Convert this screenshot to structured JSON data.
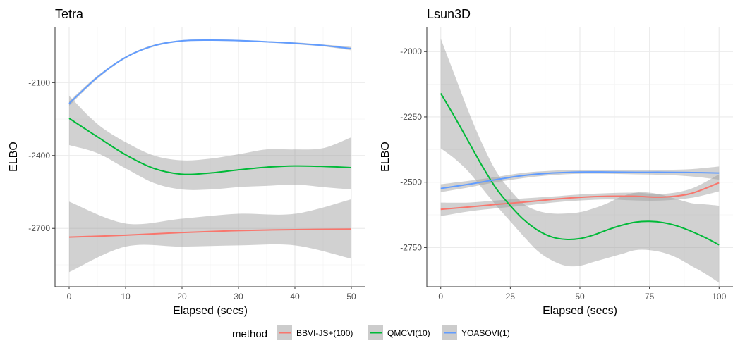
{
  "chart_data": [
    {
      "type": "line",
      "title": "Tetra",
      "xlabel": "Elapsed (secs)",
      "ylabel": "ELBO",
      "xlim": [
        -2.5,
        52.5
      ],
      "ylim": [
        -2940,
        -1870
      ],
      "xticks": [
        0,
        10,
        20,
        30,
        40,
        50
      ],
      "xtick_labels": [
        "0",
        "10",
        "20",
        "30",
        "40",
        "50"
      ],
      "yticks": [
        -2100,
        -2400,
        -2700
      ],
      "ytick_labels": [
        "-2100",
        "-2400",
        "-2700"
      ],
      "grid": true,
      "series": [
        {
          "name": "BBVI-JS+(100)",
          "color": "#F8766D",
          "x": [
            0,
            10,
            20,
            30,
            40,
            50
          ],
          "y": [
            -2736,
            -2728,
            -2717,
            -2709,
            -2705,
            -2703
          ],
          "band_lower": [
            -2880,
            -2775,
            -2775,
            -2770,
            -2770,
            -2825
          ],
          "band_upper": [
            -2590,
            -2680,
            -2660,
            -2640,
            -2640,
            -2580
          ]
        },
        {
          "name": "QMCVI(10)",
          "color": "#00BA38",
          "x": [
            0,
            5,
            10,
            15,
            20,
            25,
            30,
            35,
            40,
            45,
            50
          ],
          "y": [
            -2247,
            -2323,
            -2397,
            -2453,
            -2477,
            -2472,
            -2459,
            -2448,
            -2443,
            -2445,
            -2450
          ],
          "band_lower": [
            -2357,
            -2390,
            -2453,
            -2513,
            -2540,
            -2540,
            -2530,
            -2525,
            -2520,
            -2530,
            -2540
          ],
          "band_upper": [
            -2154,
            -2270,
            -2345,
            -2400,
            -2420,
            -2413,
            -2395,
            -2375,
            -2375,
            -2370,
            -2325
          ]
        },
        {
          "name": "YOASOVI(1)",
          "color": "#619CFF",
          "x": [
            0,
            5,
            10,
            15,
            20,
            25,
            30,
            35,
            40,
            45,
            50
          ],
          "y": [
            -2186,
            -2078,
            -1996,
            -1948,
            -1928,
            -1925,
            -1927,
            -1932,
            -1938,
            -1947,
            -1960
          ],
          "band_lower": [
            -2195,
            -2084,
            -2000,
            -1952,
            -1931,
            -1928,
            -1930,
            -1935,
            -1942,
            -1951,
            -1967
          ],
          "band_upper": [
            -2177,
            -2072,
            -1992,
            -1944,
            -1925,
            -1922,
            -1924,
            -1929,
            -1934,
            -1943,
            -1953
          ]
        }
      ]
    },
    {
      "type": "line",
      "title": "Lsun3D",
      "xlabel": "Elapsed (secs)",
      "ylabel": "ELBO",
      "xlim": [
        -5,
        105
      ],
      "ylim": [
        -2900,
        -1905
      ],
      "xticks": [
        0,
        25,
        50,
        75,
        100
      ],
      "xtick_labels": [
        "0",
        "25",
        "50",
        "75",
        "100"
      ],
      "yticks": [
        -2000,
        -2250,
        -2500,
        -2750
      ],
      "ytick_labels": [
        "-2000",
        "-2250",
        "-2500",
        "-2750"
      ],
      "grid": true,
      "series": [
        {
          "name": "BBVI-JS+(100)",
          "color": "#F8766D",
          "x": [
            0,
            10,
            20,
            30,
            40,
            50,
            60,
            70,
            80,
            90,
            100
          ],
          "y": [
            -2604,
            -2595,
            -2585,
            -2576,
            -2566,
            -2558,
            -2554,
            -2554,
            -2557,
            -2543,
            -2502
          ],
          "band_lower": [
            -2630,
            -2612,
            -2600,
            -2590,
            -2578,
            -2570,
            -2566,
            -2570,
            -2570,
            -2560,
            -2535
          ],
          "band_upper": [
            -2578,
            -2578,
            -2570,
            -2562,
            -2555,
            -2547,
            -2542,
            -2540,
            -2545,
            -2525,
            -2470
          ]
        },
        {
          "name": "QMCVI(10)",
          "color": "#00BA38",
          "x": [
            0,
            5,
            10,
            15,
            20,
            25,
            30,
            35,
            40,
            45,
            50,
            55,
            60,
            65,
            70,
            75,
            80,
            85,
            90,
            95,
            100
          ],
          "y": [
            -2160,
            -2250,
            -2345,
            -2440,
            -2525,
            -2590,
            -2645,
            -2685,
            -2710,
            -2719,
            -2716,
            -2702,
            -2682,
            -2665,
            -2653,
            -2650,
            -2655,
            -2668,
            -2688,
            -2712,
            -2740
          ],
          "band_lower": [
            -2370,
            -2410,
            -2460,
            -2525,
            -2590,
            -2650,
            -2710,
            -2765,
            -2800,
            -2820,
            -2820,
            -2805,
            -2790,
            -2775,
            -2760,
            -2760,
            -2770,
            -2790,
            -2820,
            -2850,
            -2885
          ],
          "band_upper": [
            -1950,
            -2090,
            -2230,
            -2355,
            -2460,
            -2530,
            -2585,
            -2610,
            -2620,
            -2620,
            -2615,
            -2600,
            -2580,
            -2555,
            -2540,
            -2540,
            -2550,
            -2565,
            -2580,
            -2585,
            -2590
          ]
        },
        {
          "name": "YOASOVI(1)",
          "color": "#619CFF",
          "x": [
            0,
            10,
            20,
            30,
            40,
            50,
            60,
            70,
            80,
            90,
            100
          ],
          "y": [
            -2524,
            -2508,
            -2490,
            -2474,
            -2465,
            -2461,
            -2461,
            -2462,
            -2462,
            -2463,
            -2465
          ],
          "band_lower": [
            -2538,
            -2520,
            -2500,
            -2484,
            -2473,
            -2468,
            -2468,
            -2470,
            -2472,
            -2478,
            -2490
          ],
          "band_upper": [
            -2508,
            -2495,
            -2480,
            -2464,
            -2456,
            -2453,
            -2453,
            -2454,
            -2453,
            -2450,
            -2440
          ]
        }
      ]
    }
  ],
  "legend": {
    "title": "method",
    "entries": [
      {
        "label": "BBVI-JS+(100)",
        "color": "#F8766D"
      },
      {
        "label": "QMCVI(10)",
        "color": "#00BA38"
      },
      {
        "label": "YOASOVI(1)",
        "color": "#619CFF"
      }
    ],
    "placement": "bottom",
    "band_color": "#cccccc"
  },
  "style": {
    "grid_major": "#ebebeb",
    "grid_minor": "#f5f5f5",
    "band_fill": "#999999",
    "axis_color": "#333333"
  }
}
